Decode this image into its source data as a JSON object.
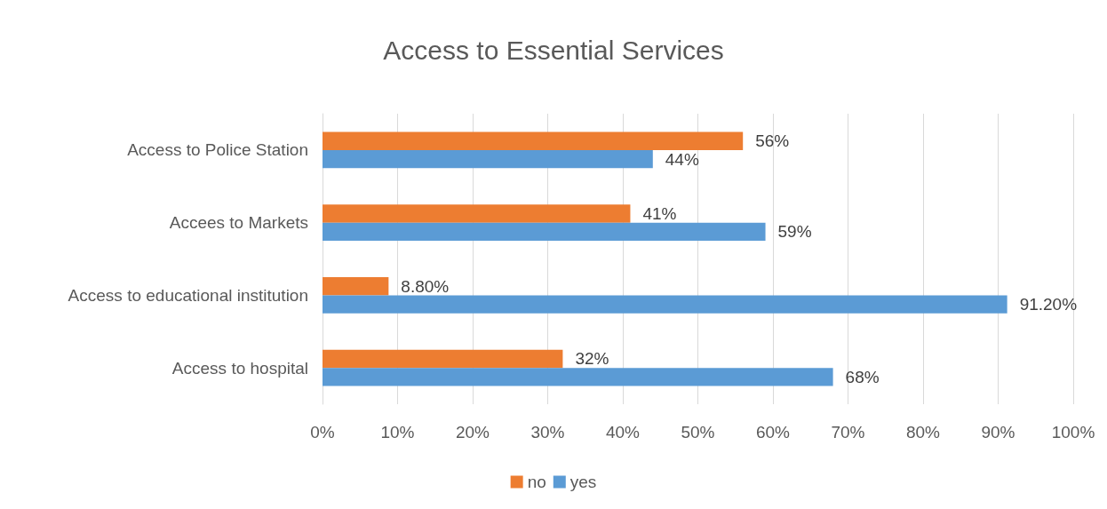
{
  "chart_data": {
    "type": "bar",
    "orientation": "horizontal",
    "title": "Access to Essential Services",
    "categories": [
      "Access to Police Station",
      "Accees to Markets",
      "Access to educational institution",
      "Access to hospital"
    ],
    "series": [
      {
        "name": "no",
        "color": "#ed7d31",
        "values": [
          56,
          41,
          8.8,
          32
        ],
        "value_labels": [
          "56%",
          "41%",
          "8.80%",
          "32%"
        ]
      },
      {
        "name": "yes",
        "color": "#5b9bd5",
        "values": [
          44,
          59,
          91.2,
          68
        ],
        "value_labels": [
          "44%",
          "59%",
          "91.20%",
          "68%"
        ]
      }
    ],
    "xlim": [
      0,
      100
    ],
    "xticks": [
      {
        "value": 0,
        "label": "0%"
      },
      {
        "value": 10,
        "label": "10%"
      },
      {
        "value": 20,
        "label": "20%"
      },
      {
        "value": 30,
        "label": "30%"
      },
      {
        "value": 40,
        "label": "40%"
      },
      {
        "value": 50,
        "label": "50%"
      },
      {
        "value": 60,
        "label": "60%"
      },
      {
        "value": 70,
        "label": "70%"
      },
      {
        "value": 80,
        "label": "80%"
      },
      {
        "value": 90,
        "label": "90%"
      },
      {
        "value": 100,
        "label": "100%"
      }
    ],
    "grid": "x",
    "legend": "bottom"
  }
}
